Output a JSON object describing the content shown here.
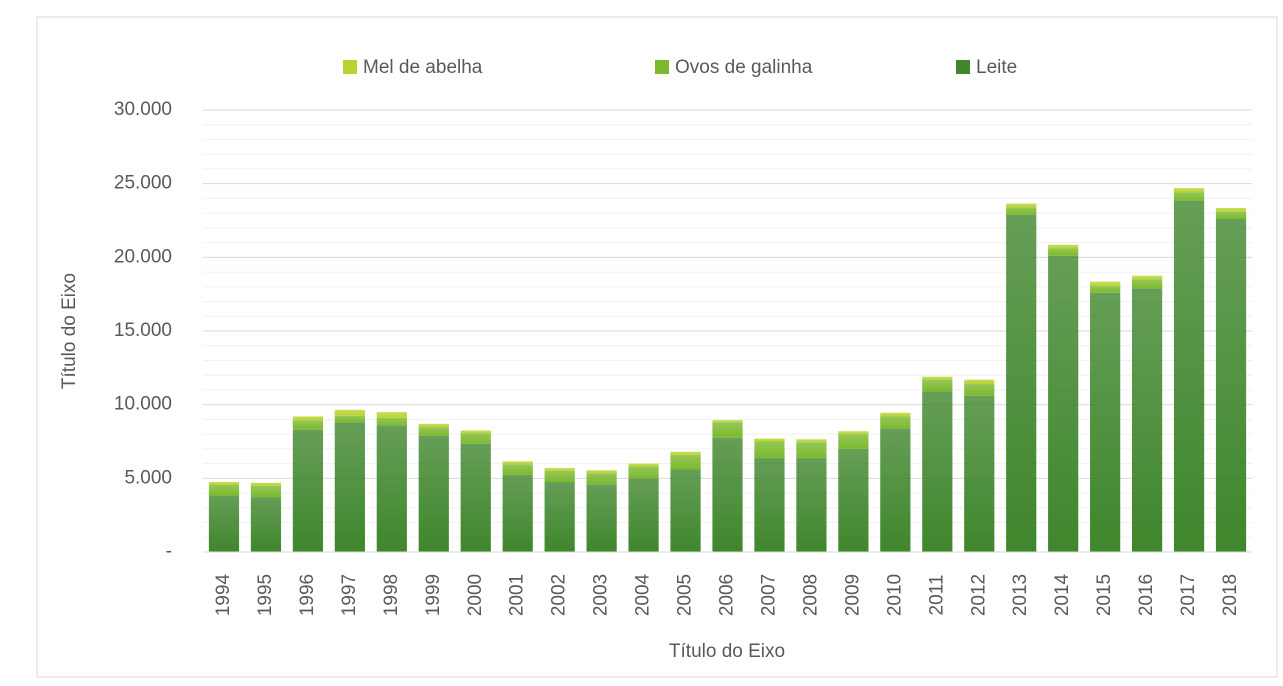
{
  "chart_data": {
    "type": "stacked_bar",
    "x_label": "Título do Eixo",
    "y_label": "Título do Eixo",
    "categories": [
      "1994",
      "1995",
      "1996",
      "1997",
      "1998",
      "1999",
      "2000",
      "2001",
      "2002",
      "2003",
      "2004",
      "2005",
      "2006",
      "2007",
      "2008",
      "2009",
      "2010",
      "2011",
      "2012",
      "2013",
      "2014",
      "2015",
      "2016",
      "2017",
      "2018"
    ],
    "series": [
      {
        "name": "Leite",
        "color": "#3f862c",
        "values": [
          3800,
          3700,
          8300,
          8800,
          8600,
          7900,
          7350,
          5250,
          4750,
          4600,
          5000,
          5600,
          7750,
          6400,
          6400,
          7000,
          8400,
          10900,
          10600,
          22900,
          20100,
          17600,
          17900,
          23850,
          22600
        ]
      },
      {
        "name": "Ovos de galinha",
        "color": "#7cb92e",
        "values": [
          750,
          800,
          650,
          450,
          500,
          550,
          700,
          700,
          750,
          750,
          800,
          1000,
          1050,
          1100,
          1050,
          1000,
          800,
          800,
          800,
          500,
          500,
          450,
          600,
          550,
          500
        ]
      },
      {
        "name": "Mel de abelha",
        "color": "#b7d433",
        "values": [
          200,
          200,
          250,
          400,
          400,
          250,
          200,
          200,
          200,
          200,
          200,
          200,
          150,
          200,
          200,
          200,
          250,
          200,
          300,
          250,
          250,
          300,
          250,
          300,
          250
        ]
      }
    ],
    "legend_order": [
      2,
      1,
      0
    ],
    "ylim": [
      0,
      30000
    ],
    "yticks": [
      {
        "value": 0,
        "label": "-"
      },
      {
        "value": 5000,
        "label": "5.000"
      },
      {
        "value": 10000,
        "label": "10.000"
      },
      {
        "value": 15000,
        "label": "15.000"
      },
      {
        "value": 20000,
        "label": "20.000"
      },
      {
        "value": 25000,
        "label": "25.000"
      },
      {
        "value": 30000,
        "label": "30.000"
      }
    ],
    "y_minor_ticks": [
      1000,
      2000,
      3000,
      4000,
      6000,
      7000,
      8000,
      9000,
      11000,
      12000,
      13000,
      14000,
      16000,
      17000,
      18000,
      19000,
      21000,
      22000,
      23000,
      24000,
      26000,
      27000,
      28000,
      29000
    ],
    "grid": true
  }
}
